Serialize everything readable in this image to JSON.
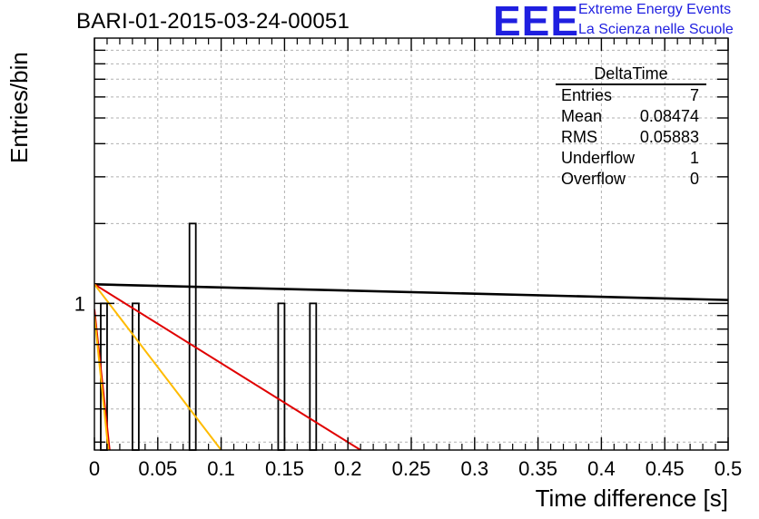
{
  "chart_data": {
    "type": "bar",
    "title": "BARI-01-2015-03-24-00051",
    "xlabel": "Time difference [s]",
    "ylabel": "Entries/bin",
    "xlim": [
      0,
      0.5
    ],
    "ylim_log": [
      0.28,
      10
    ],
    "log_y": true,
    "grid": true,
    "x_ticks": [
      "0",
      "0.05",
      "0.1",
      "0.15",
      "0.2",
      "0.25",
      "0.3",
      "0.35",
      "0.4",
      "0.45",
      "0.5"
    ],
    "y_ticks": [
      "1"
    ],
    "bin_width": 0.005,
    "bins": [
      {
        "x": 0.005,
        "value": 1
      },
      {
        "x": 0.03,
        "value": 1
      },
      {
        "x": 0.075,
        "value": 2
      },
      {
        "x": 0.145,
        "value": 1
      },
      {
        "x": 0.17,
        "value": 1
      }
    ],
    "fit_lines": [
      {
        "color": "#000000",
        "points": [
          [
            0,
            1.18
          ],
          [
            0.5,
            1.03
          ]
        ]
      },
      {
        "color": "#e00000",
        "points": [
          [
            0,
            1.18
          ],
          [
            0.21,
            0.28
          ]
        ]
      },
      {
        "color": "#ffbb00",
        "points": [
          [
            0,
            1.18
          ],
          [
            0.1,
            0.28
          ]
        ]
      },
      {
        "color": "#e00000",
        "points": [
          [
            0,
            0.95
          ],
          [
            0.012,
            0.28
          ]
        ]
      },
      {
        "color": "#ffbb00",
        "points": [
          [
            0,
            0.9
          ],
          [
            0.011,
            0.28
          ]
        ]
      }
    ],
    "stats_box": {
      "title": "DeltaTime",
      "entries_label": "Entries",
      "entries": "7",
      "mean_label": "Mean",
      "mean": "0.08474",
      "rms_label": "RMS",
      "rms": "0.05883",
      "underflow_label": "Underflow",
      "underflow": "1",
      "overflow_label": "Overflow",
      "overflow": "0"
    }
  },
  "logo": {
    "big": "EEE",
    "line1": "Extreme Energy Events",
    "line2": "La Scienza nelle Scuole"
  }
}
